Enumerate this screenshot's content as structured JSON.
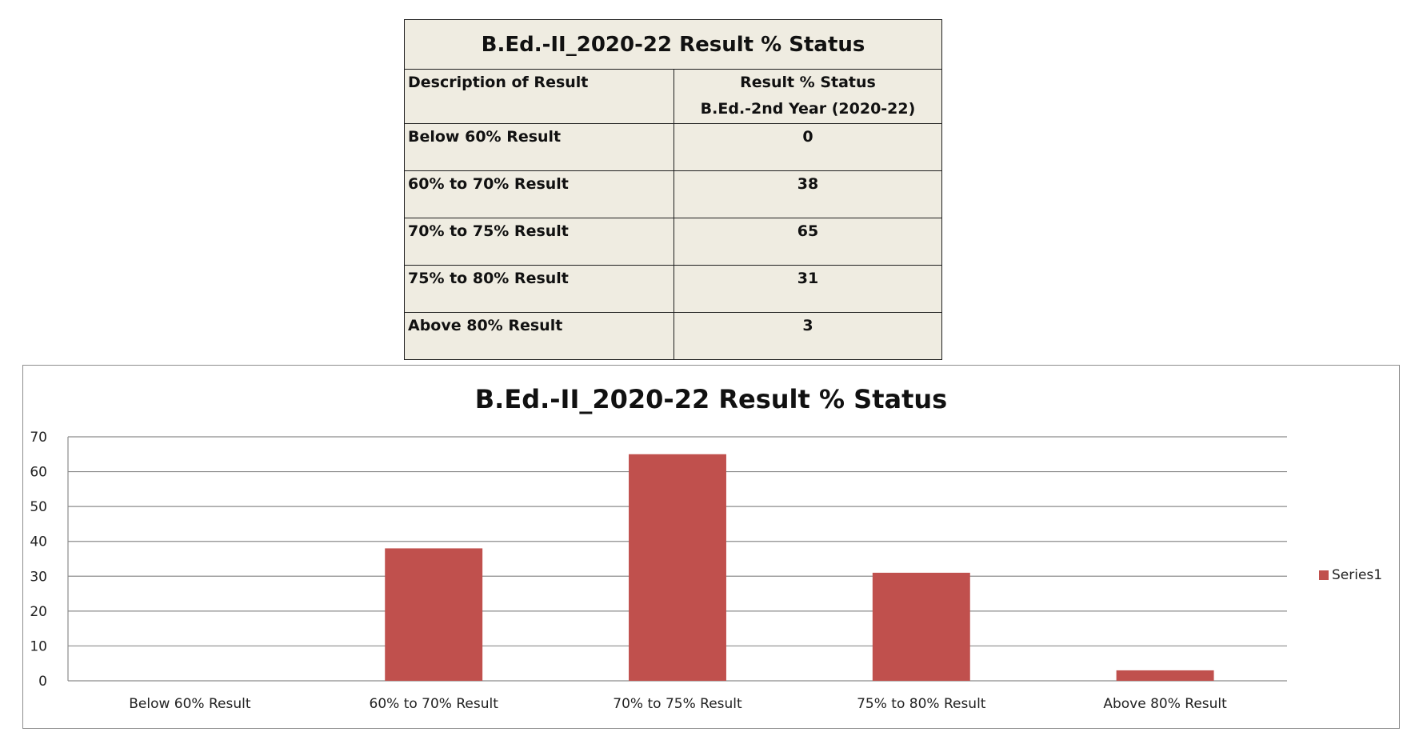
{
  "table": {
    "title": "B.Ed.-II_2020-22 Result % Status",
    "header_left": "Description of Result",
    "header_right_line1": "Result % Status",
    "header_right_line2": "B.Ed.-2nd Year (2020-22)",
    "rows": [
      {
        "label": "Below 60% Result",
        "value": "0"
      },
      {
        "label": "60% to 70% Result",
        "value": "38"
      },
      {
        "label": "70% to 75% Result",
        "value": "65"
      },
      {
        "label": "75% to 80% Result",
        "value": "31"
      },
      {
        "label": "Above 80% Result",
        "value": "3"
      }
    ]
  },
  "chart_data": {
    "type": "bar",
    "title": "B.Ed.-II_2020-22 Result % Status",
    "categories": [
      "Below 60% Result",
      "60% to  70% Result",
      "70% to  75% Result",
      "75% to  80% Result",
      "Above 80% Result"
    ],
    "series": [
      {
        "name": "Series1",
        "values": [
          0,
          38,
          65,
          31,
          3
        ],
        "color": "#c0504d"
      }
    ],
    "ylim": [
      0,
      70
    ],
    "yticks": [
      0,
      10,
      20,
      30,
      40,
      50,
      60,
      70
    ],
    "xlabel": "",
    "ylabel": "",
    "grid": true,
    "legend_position": "right",
    "colors": {
      "bar": "#c0504d",
      "grid": "#8c8c8c",
      "table_background": "#efece1"
    }
  }
}
